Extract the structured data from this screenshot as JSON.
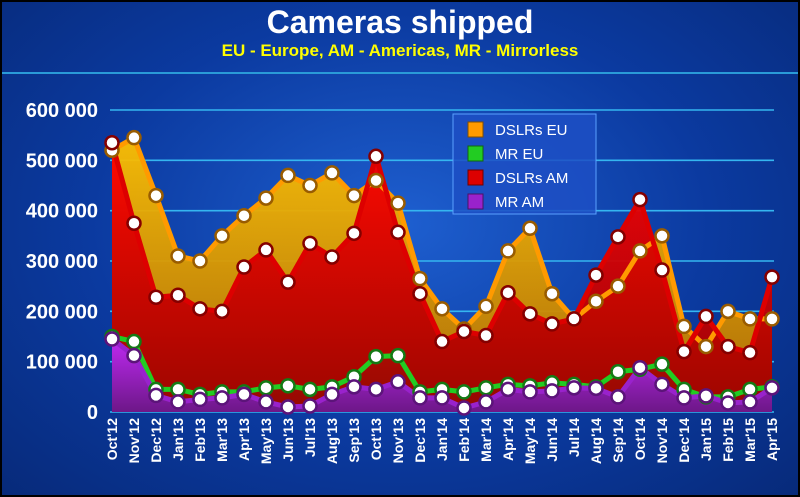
{
  "header": {
    "title": "Cameras shipped",
    "subtitle": "EU - Europe, AM - Americas, MR - Mirrorless"
  },
  "chart_data": {
    "type": "area",
    "title": "Cameras shipped",
    "subtitle": "EU - Europe, AM - Americas, MR - Mirrorless",
    "xlabel": "",
    "ylabel": "",
    "ylim": [
      0,
      600000
    ],
    "yticks": [
      "0",
      "100 000",
      "200 000",
      "300 000",
      "400 000",
      "500 000",
      "600 000"
    ],
    "grid": true,
    "legend_position": "top-center",
    "categories": [
      "Oct'12",
      "Nov'12",
      "Dec'12",
      "Jan'13",
      "Feb'13",
      "Mar'13",
      "Apr'13",
      "May'13",
      "Jun'13",
      "Jul'13",
      "Aug'13",
      "Sep'13",
      "Oct'13",
      "Nov'13",
      "Dec'13",
      "Jan'14",
      "Feb'14",
      "Mar'14",
      "Apr'14",
      "May'14",
      "Jun'14",
      "Jul'14",
      "Aug'14",
      "Sep'14",
      "Oct'14",
      "Nov'14",
      "Dec'14",
      "Jan'15",
      "Feb'15",
      "Mar'15",
      "Apr'15"
    ],
    "series": [
      {
        "name": "DSLRs EU",
        "color": "#ff9a00",
        "values": [
          520000,
          545000,
          430000,
          310000,
          300000,
          350000,
          390000,
          425000,
          470000,
          450000,
          475000,
          430000,
          460000,
          415000,
          265000,
          205000,
          165000,
          210000,
          320000,
          365000,
          235000,
          185000,
          220000,
          250000,
          320000,
          350000,
          170000,
          130000,
          200000,
          185000,
          185000
        ]
      },
      {
        "name": "MR EU",
        "color": "#22cc22",
        "values": [
          150000,
          140000,
          45000,
          45000,
          35000,
          40000,
          40000,
          48000,
          52000,
          45000,
          50000,
          70000,
          110000,
          112000,
          40000,
          45000,
          40000,
          48000,
          55000,
          52000,
          58000,
          55000,
          50000,
          80000,
          85000,
          95000,
          45000,
          30000,
          30000,
          45000,
          50000
        ]
      },
      {
        "name": "DSLRs AM",
        "color": "#dd0000",
        "values": [
          535000,
          375000,
          228000,
          232000,
          205000,
          200000,
          288000,
          322000,
          258000,
          335000,
          308000,
          355000,
          508000,
          357000,
          235000,
          140000,
          160000,
          152000,
          237000,
          195000,
          175000,
          185000,
          272000,
          348000,
          422000,
          282000,
          120000,
          190000,
          130000,
          118000,
          268000
        ]
      },
      {
        "name": "MR AM",
        "color": "#9922cc",
        "values": [
          145000,
          112000,
          33000,
          20000,
          25000,
          28000,
          35000,
          20000,
          10000,
          12000,
          35000,
          50000,
          45000,
          60000,
          28000,
          28000,
          8000,
          20000,
          45000,
          40000,
          42000,
          48000,
          47000,
          30000,
          88000,
          55000,
          28000,
          32000,
          18000,
          20000,
          48000
        ]
      }
    ]
  }
}
